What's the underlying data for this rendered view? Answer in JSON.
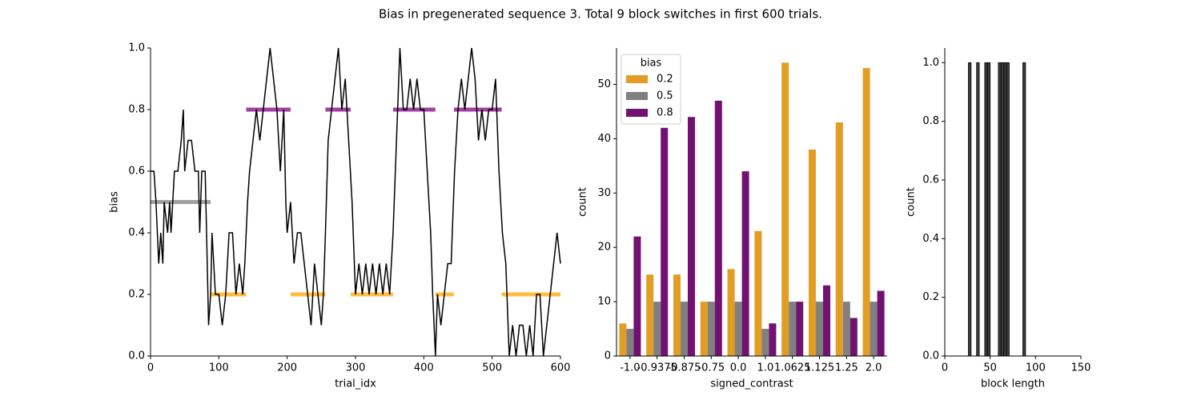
{
  "title": "Bias in pregenerated sequence 3. Total 9 block switches in first 600 trials.",
  "chart_data": [
    {
      "type": "line",
      "xlabel": "trial_idx",
      "ylabel": "bias",
      "xlim": [
        0,
        600
      ],
      "ylim": [
        0,
        1
      ],
      "xticks": [
        0,
        100,
        200,
        300,
        400,
        500,
        600
      ],
      "yticks": [
        {
          "value": 0,
          "label": "0.0"
        },
        {
          "value": 0.2,
          "label": "0.2"
        },
        {
          "value": 0.4,
          "label": "0.4"
        },
        {
          "value": 0.6,
          "label": "0.6"
        },
        {
          "value": 0.8,
          "label": "0.8"
        },
        {
          "value": 1.0,
          "label": "1.0"
        }
      ],
      "series": [
        {
          "color": "#000000",
          "x": [
            0,
            5,
            8,
            10,
            12,
            15,
            18,
            20,
            25,
            28,
            30,
            35,
            40,
            45,
            48,
            50,
            55,
            60,
            65,
            70,
            72,
            75,
            80,
            82,
            85,
            88,
            90,
            95,
            100,
            105,
            110,
            115,
            120,
            125,
            130,
            135,
            138,
            142,
            145,
            150,
            155,
            160,
            165,
            170,
            175,
            180,
            185,
            190,
            195,
            198,
            200,
            205,
            210,
            215,
            220,
            225,
            230,
            235,
            240,
            245,
            250,
            253,
            256,
            260,
            265,
            270,
            275,
            280,
            285,
            290,
            295,
            300,
            305,
            310,
            315,
            320,
            325,
            330,
            335,
            340,
            345,
            350,
            355,
            360,
            365,
            370,
            375,
            380,
            385,
            390,
            395,
            400,
            405,
            410,
            413,
            417,
            420,
            425,
            430,
            435,
            440,
            445,
            450,
            455,
            460,
            465,
            470,
            475,
            480,
            485,
            490,
            495,
            500,
            505,
            510,
            515,
            520,
            525,
            530,
            535,
            540,
            545,
            550,
            555,
            560,
            565,
            570,
            575,
            580,
            585,
            590,
            595,
            600
          ],
          "values": [
            0.6,
            0.6,
            0.5,
            0.4,
            0.3,
            0.4,
            0.3,
            0.5,
            0.4,
            0.5,
            0.4,
            0.6,
            0.6,
            0.7,
            0.8,
            0.6,
            0.7,
            0.7,
            0.6,
            0.6,
            0.4,
            0.6,
            0.6,
            0.4,
            0.1,
            0.2,
            0.4,
            0.2,
            0.2,
            0.1,
            0.2,
            0.4,
            0.4,
            0.2,
            0.3,
            0.2,
            0.3,
            0.5,
            0.6,
            0.7,
            0.8,
            0.7,
            0.8,
            0.9,
            1.0,
            0.9,
            0.8,
            0.6,
            0.8,
            0.5,
            0.4,
            0.5,
            0.3,
            0.4,
            0.4,
            0.3,
            0.2,
            0.1,
            0.3,
            0.2,
            0.1,
            0.2,
            0.4,
            0.7,
            0.8,
            0.9,
            1.0,
            0.8,
            0.9,
            0.7,
            0.5,
            0.2,
            0.3,
            0.2,
            0.3,
            0.2,
            0.3,
            0.2,
            0.3,
            0.2,
            0.3,
            0.2,
            0.4,
            0.7,
            1.0,
            0.8,
            0.8,
            0.9,
            0.8,
            0.9,
            0.8,
            0.8,
            0.6,
            0.4,
            0.2,
            0.0,
            0.2,
            0.1,
            0.2,
            0.3,
            0.3,
            0.6,
            0.8,
            0.9,
            0.8,
            0.9,
            1.0,
            0.9,
            0.7,
            0.8,
            0.7,
            0.8,
            0.8,
            0.9,
            0.6,
            0.4,
            0.3,
            0.0,
            0.1,
            0.0,
            0.1,
            0.1,
            0.0,
            0.1,
            0.0,
            0.2,
            0.2,
            0.0,
            0.1,
            0.2,
            0.3,
            0.4,
            0.3
          ]
        }
      ],
      "blocks": [
        {
          "x": [
            0,
            88
          ],
          "bias": 0.5,
          "color": "gray"
        },
        {
          "x": [
            88,
            140
          ],
          "bias": 0.2,
          "color": "orange"
        },
        {
          "x": [
            140,
            205
          ],
          "bias": 0.8,
          "color": "purple"
        },
        {
          "x": [
            205,
            256
          ],
          "bias": 0.2,
          "color": "orange"
        },
        {
          "x": [
            256,
            293
          ],
          "bias": 0.8,
          "color": "purple"
        },
        {
          "x": [
            293,
            355
          ],
          "bias": 0.2,
          "color": "orange"
        },
        {
          "x": [
            355,
            417
          ],
          "bias": 0.8,
          "color": "purple"
        },
        {
          "x": [
            417,
            444
          ],
          "bias": 0.2,
          "color": "orange"
        },
        {
          "x": [
            444,
            514
          ],
          "bias": 0.8,
          "color": "purple"
        },
        {
          "x": [
            514,
            600
          ],
          "bias": 0.2,
          "color": "orange"
        }
      ]
    },
    {
      "type": "bar",
      "xlabel": "signed_contrast",
      "ylabel": "count",
      "categories": [
        "-1.0",
        "-0.9375",
        "-0.875",
        "-0.75",
        "0.0",
        "1.0",
        "1.0625",
        "1.125",
        "1.25",
        "2.0"
      ],
      "series": [
        {
          "name": "0.2",
          "color": "#e29d24",
          "values": [
            6,
            15,
            15,
            10,
            16,
            23,
            54,
            38,
            43,
            53
          ]
        },
        {
          "name": "0.5",
          "color": "#808080",
          "values": [
            5,
            10,
            10,
            10,
            10,
            5,
            10,
            10,
            10,
            10
          ]
        },
        {
          "name": "0.8",
          "color": "#731173",
          "values": [
            22,
            42,
            44,
            47,
            34,
            6,
            10,
            13,
            7,
            12
          ]
        }
      ],
      "legend_title": "bias",
      "legend": "upper left",
      "ylim": [
        0,
        56.7
      ],
      "yticks": [
        0,
        10,
        20,
        30,
        40,
        50
      ]
    },
    {
      "type": "histogram",
      "xlabel": "block length",
      "ylabel": "count",
      "bins": [
        26,
        29,
        32,
        35,
        38,
        41,
        44,
        47,
        50,
        53,
        56,
        59,
        62,
        65,
        68,
        71,
        74,
        77,
        80,
        83,
        86,
        89
      ],
      "counts": [
        1,
        0,
        0,
        1,
        0,
        0,
        1,
        1,
        0,
        0,
        0,
        1,
        1,
        1,
        1,
        0,
        0,
        0,
        0,
        0,
        1
      ],
      "color": "#3d3d3d",
      "xlim": [
        0,
        150
      ],
      "xticks": [
        0,
        50,
        100,
        150
      ],
      "ylim": [
        0,
        1.05
      ],
      "yticks": [
        {
          "value": 0,
          "label": "0.0"
        },
        {
          "value": 0.2,
          "label": "0.2"
        },
        {
          "value": 0.4,
          "label": "0.4"
        },
        {
          "value": 0.6,
          "label": "0.6"
        },
        {
          "value": 0.8,
          "label": "0.8"
        },
        {
          "value": 1.0,
          "label": "1.0"
        }
      ]
    }
  ]
}
